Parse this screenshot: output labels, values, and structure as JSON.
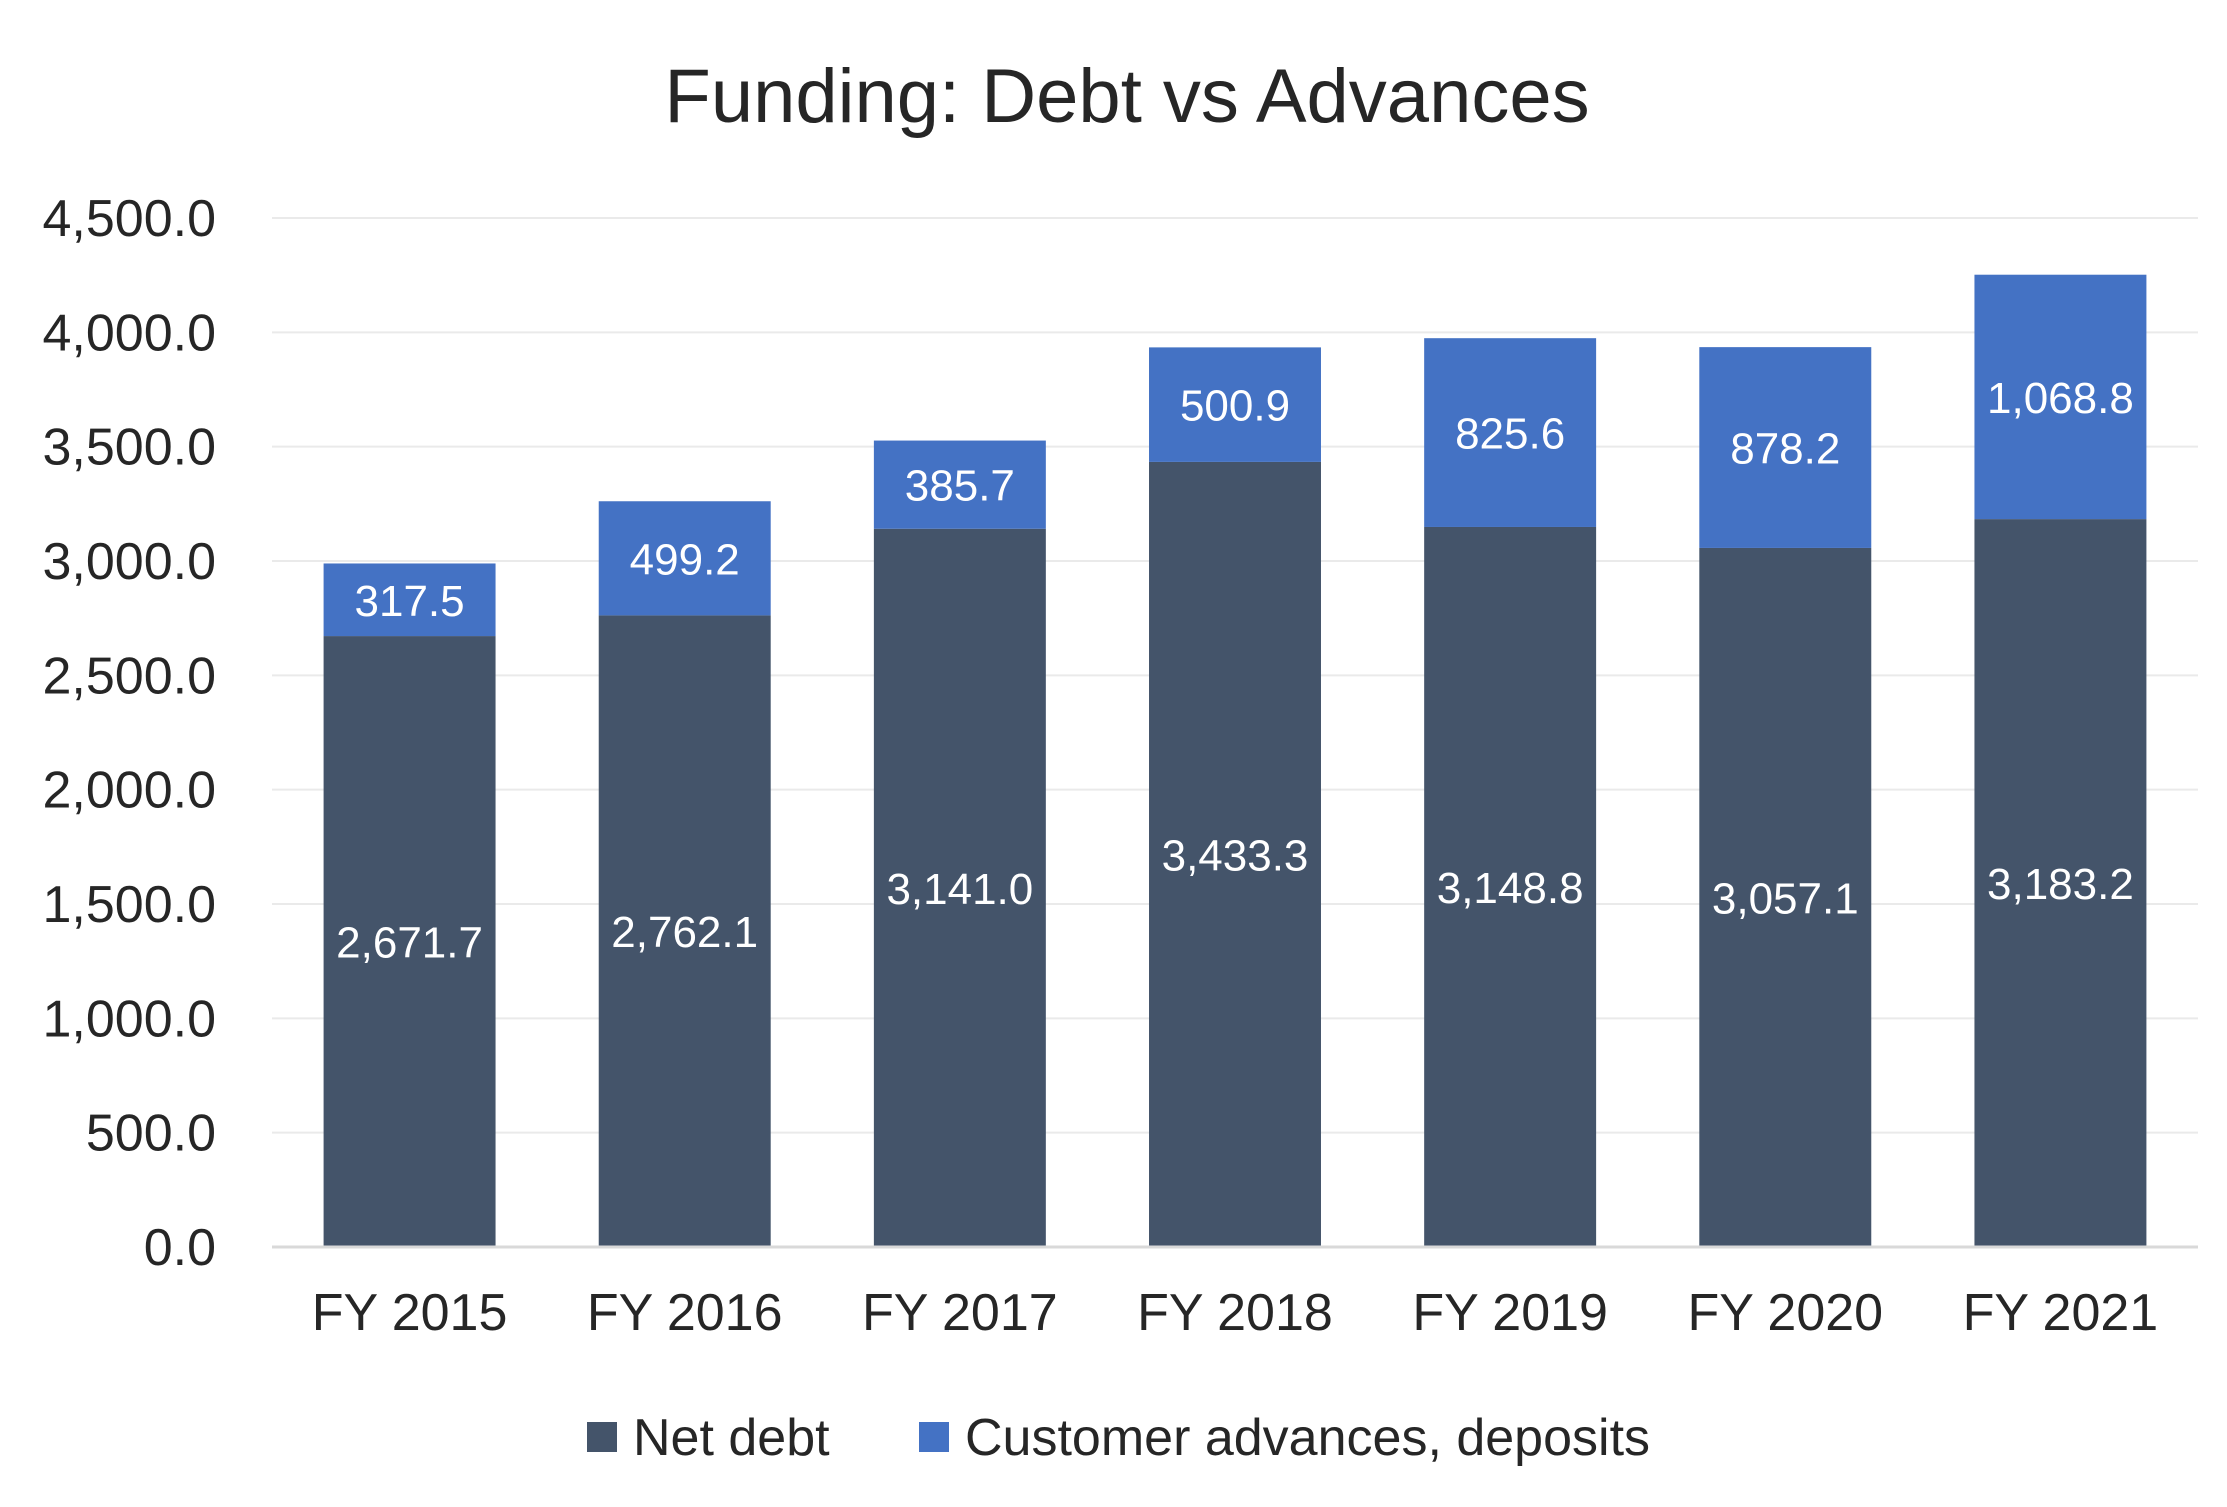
{
  "chart_data": {
    "type": "bar",
    "stacked": true,
    "title": "Funding: Debt vs Advances",
    "xlabel": "",
    "ylabel": "",
    "categories": [
      "FY 2015",
      "FY 2016",
      "FY 2017",
      "FY 2018",
      "FY 2019",
      "FY 2020",
      "FY 2021"
    ],
    "series": [
      {
        "name": "Net debt",
        "color": "#44546A",
        "values": [
          2671.7,
          2762.1,
          3141.0,
          3433.3,
          3148.8,
          3057.1,
          3183.2
        ],
        "labels": [
          "2,671.7",
          "2,762.1",
          "3,141.0",
          "3,433.3",
          "3,148.8",
          "3,057.1",
          "3,183.2"
        ]
      },
      {
        "name": "Customer advances, deposits",
        "color": "#4472C4",
        "values": [
          317.5,
          499.2,
          385.7,
          500.9,
          825.6,
          878.2,
          1068.8
        ],
        "labels": [
          "317.5",
          "499.2",
          "385.7",
          "500.9",
          "825.6",
          "878.2",
          "1,068.8"
        ]
      }
    ],
    "ylim": [
      0,
      4500
    ],
    "yticks": [
      "0.0",
      "500.0",
      "1,000.0",
      "1,500.0",
      "2,000.0",
      "2,500.0",
      "3,000.0",
      "3,500.0",
      "4,000.0",
      "4,500.0"
    ],
    "grid": true,
    "legend_position": "bottom"
  }
}
